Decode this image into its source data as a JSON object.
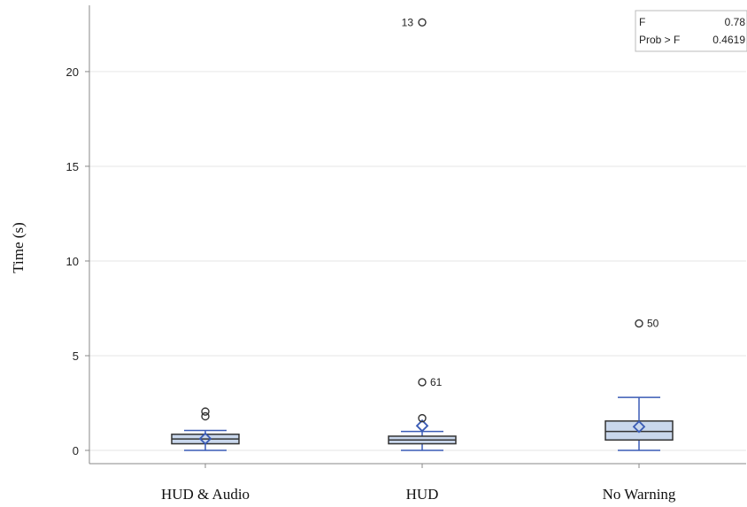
{
  "chart_data": {
    "type": "box",
    "ylabel": "Time (s)",
    "xlabel": "",
    "ylim": [
      -0.7,
      23.5
    ],
    "yticks": [
      0,
      5,
      10,
      15,
      20
    ],
    "grid": true,
    "categories": [
      "HUD & Audio",
      "HUD",
      "No Warning"
    ],
    "boxes": [
      {
        "category": "HUD & Audio",
        "whisker_low": 0.0,
        "q1": 0.35,
        "median": 0.6,
        "q3": 0.85,
        "whisker_high": 1.05,
        "mean": 0.62,
        "outliers": [
          {
            "value": 1.8,
            "label": ""
          },
          {
            "value": 2.05,
            "label": ""
          }
        ]
      },
      {
        "category": "HUD",
        "whisker_low": 0.0,
        "q1": 0.35,
        "median": 0.55,
        "q3": 0.75,
        "whisker_high": 1.0,
        "mean": 1.3,
        "outliers": [
          {
            "value": 1.7,
            "label": ""
          },
          {
            "value": 3.6,
            "label": "61"
          },
          {
            "value": 22.6,
            "label": "13"
          }
        ]
      },
      {
        "category": "No Warning",
        "whisker_low": 0.0,
        "q1": 0.55,
        "median": 1.0,
        "q3": 1.55,
        "whisker_high": 2.8,
        "mean": 1.25,
        "outliers": [
          {
            "value": 6.7,
            "label": "50"
          }
        ]
      }
    ],
    "stats_box": [
      {
        "label": "F",
        "value": "0.78"
      },
      {
        "label": "Prob > F",
        "value": "0.4619"
      }
    ]
  },
  "colors": {
    "box_fill": "#c9d7ec",
    "box_stroke": "#333333",
    "whisker": "#3a5bb5",
    "mean_marker": "#3a5bb5",
    "outlier": "#333333",
    "grid": "#e6e6e6",
    "axis": "#888888"
  }
}
